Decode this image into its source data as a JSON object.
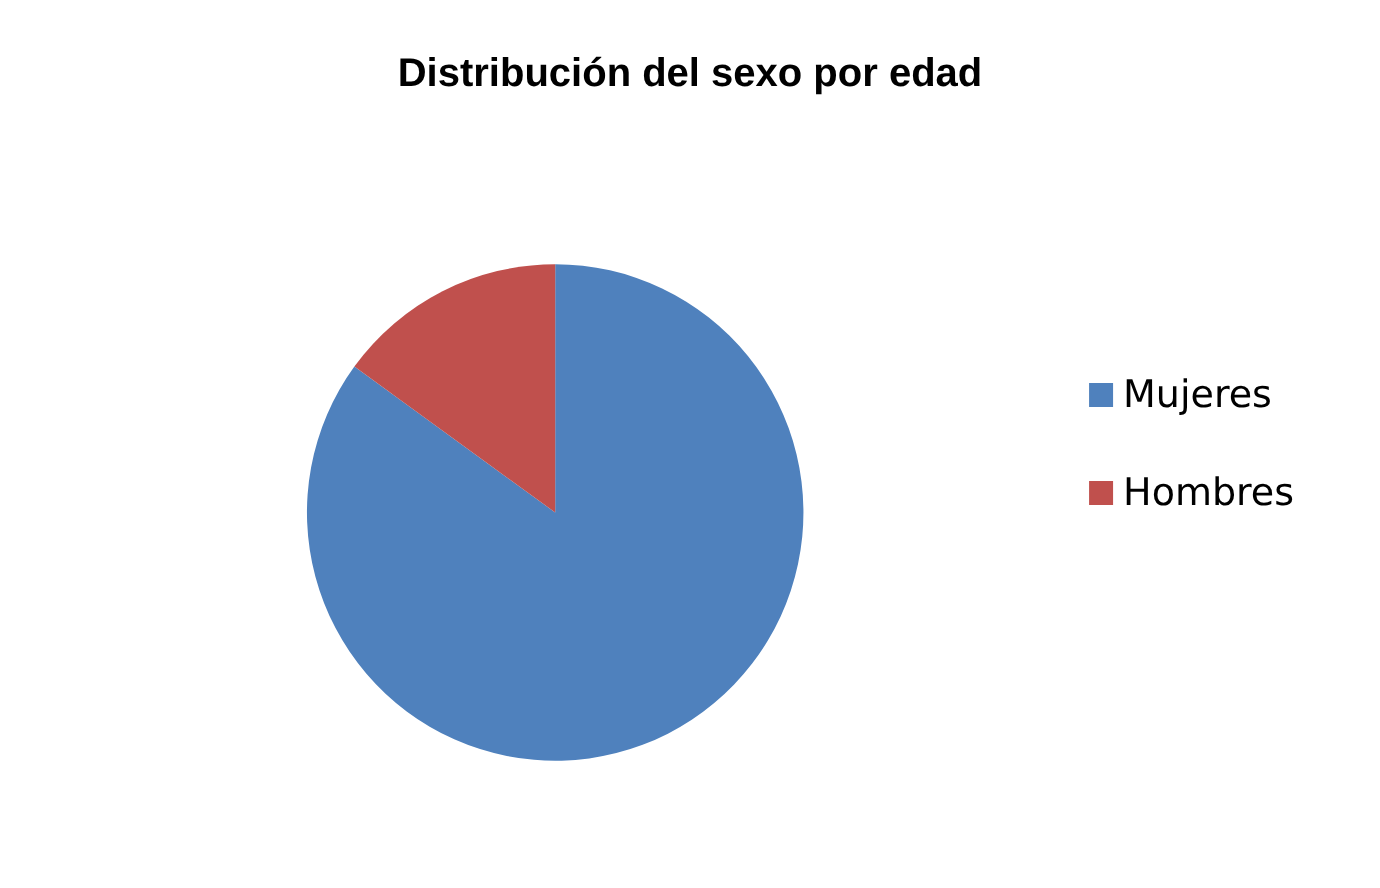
{
  "chart_data": {
    "type": "pie",
    "title": "Distribución del sexo por edad",
    "categories": [
      "Mujeres",
      "Hombres"
    ],
    "values": [
      85,
      15
    ],
    "colors": [
      "#4f81bd",
      "#c0504d"
    ],
    "legend": "right"
  }
}
